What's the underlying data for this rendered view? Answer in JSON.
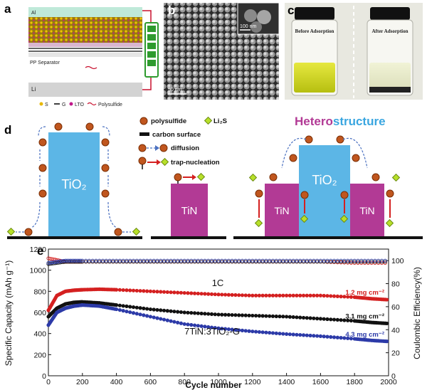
{
  "panel_a": {
    "letter": "a",
    "al_label": "Al",
    "separator_label": "PP Separator",
    "li_label": "Li",
    "legend": [
      {
        "symbol": "S",
        "color": "#e8b800"
      },
      {
        "symbol": "G",
        "color": "#000000"
      },
      {
        "symbol": "LTO",
        "color": "#c0188a"
      },
      {
        "symbol": "Polysulfide",
        "color": "#c8102e"
      }
    ]
  },
  "panel_b": {
    "letter": "b",
    "scale_main": "100 nm",
    "scale_inset": "50 nm"
  },
  "panel_c": {
    "letter": "c",
    "before_label": "Before Adsorption",
    "after_label": "After Adsorption"
  },
  "panel_d": {
    "letter": "d",
    "legend": {
      "polysulfide": "polysulfide",
      "li2s": "Li₂S",
      "carbon": "carbon surface",
      "diffusion": "diffusion",
      "trap": "trap-nucleation"
    },
    "left_block_label": "TiO₂",
    "middle_block_label": "TiN",
    "hetero_title_part1": "Hetero",
    "hetero_title_part2": "structure",
    "hetero_center_label": "TiO₂",
    "hetero_side_left": "TiN",
    "hetero_side_right": "TiN",
    "colors": {
      "tio2": "#5cb6e6",
      "tin": "#b23a95",
      "polysulfide": "#c0561e",
      "li2s": "#b7e02a"
    }
  },
  "panel_e": {
    "letter": "e",
    "rate_label": "1C",
    "sample_label": "7TiN:3TiO₂-G"
  },
  "chart_data": {
    "type": "scatter",
    "xlabel": "Cycle number",
    "ylabel": "Specific Capacity (mAh g⁻¹)",
    "y2label": "Coulombic Efficiency(%)",
    "xlim": [
      0,
      2000
    ],
    "ylim": [
      0,
      1200
    ],
    "y2lim": [
      0,
      110
    ],
    "xticks": [
      0,
      200,
      400,
      600,
      800,
      1000,
      1200,
      1400,
      1600,
      1800,
      2000
    ],
    "yticks": [
      0,
      200,
      400,
      600,
      800,
      1000,
      1200
    ],
    "y2ticks": [
      0,
      20,
      40,
      60,
      80,
      100
    ],
    "series": [
      {
        "name": "1.2 mg cm⁻²",
        "color": "#d42020",
        "axis": "left",
        "x": [
          0,
          50,
          100,
          150,
          200,
          300,
          400,
          600,
          800,
          1000,
          1200,
          1400,
          1600,
          1800,
          1900,
          2000
        ],
        "y": [
          620,
          760,
          800,
          810,
          815,
          820,
          815,
          800,
          785,
          770,
          760,
          760,
          760,
          745,
          730,
          720
        ]
      },
      {
        "name": "3.1 mg cm⁻²",
        "color": "#111111",
        "axis": "left",
        "x": [
          0,
          50,
          100,
          150,
          200,
          300,
          400,
          600,
          800,
          1000,
          1200,
          1400,
          1600,
          1800,
          1900,
          2000
        ],
        "y": [
          560,
          640,
          680,
          695,
          700,
          690,
          670,
          630,
          600,
          580,
          570,
          560,
          540,
          520,
          505,
          495
        ]
      },
      {
        "name": "4.3 mg cm⁻²",
        "color": "#2c3aa8",
        "axis": "left",
        "x": [
          0,
          50,
          100,
          150,
          200,
          300,
          400,
          600,
          800,
          1000,
          1200,
          1400,
          1600,
          1800,
          1900,
          2000
        ],
        "y": [
          480,
          600,
          640,
          660,
          670,
          660,
          630,
          560,
          490,
          450,
          420,
          395,
          375,
          350,
          335,
          325
        ]
      },
      {
        "name": "",
        "color": "#d42020",
        "axis": "right",
        "x": [
          0,
          100,
          200,
          400,
          600,
          800,
          1000,
          1200,
          1400,
          1600,
          1800,
          2000
        ],
        "y": [
          102,
          99,
          99,
          99,
          99,
          99,
          99,
          99,
          99,
          99,
          98,
          98
        ]
      },
      {
        "name": "",
        "color": "#111111",
        "axis": "right",
        "x": [
          0,
          100,
          200,
          400,
          600,
          800,
          1000,
          1200,
          1400,
          1600,
          1800,
          2000
        ],
        "y": [
          97,
          99,
          99,
          99,
          99,
          99,
          99,
          99,
          99,
          99,
          99,
          99
        ]
      },
      {
        "name": "",
        "color": "#2c3aa8",
        "axis": "right",
        "x": [
          0,
          100,
          200,
          400,
          600,
          800,
          1000,
          1200,
          1400,
          1600,
          1800,
          2000
        ],
        "y": [
          98,
          100,
          100,
          100,
          100,
          100,
          100,
          100,
          100,
          100,
          100,
          100
        ]
      }
    ]
  }
}
